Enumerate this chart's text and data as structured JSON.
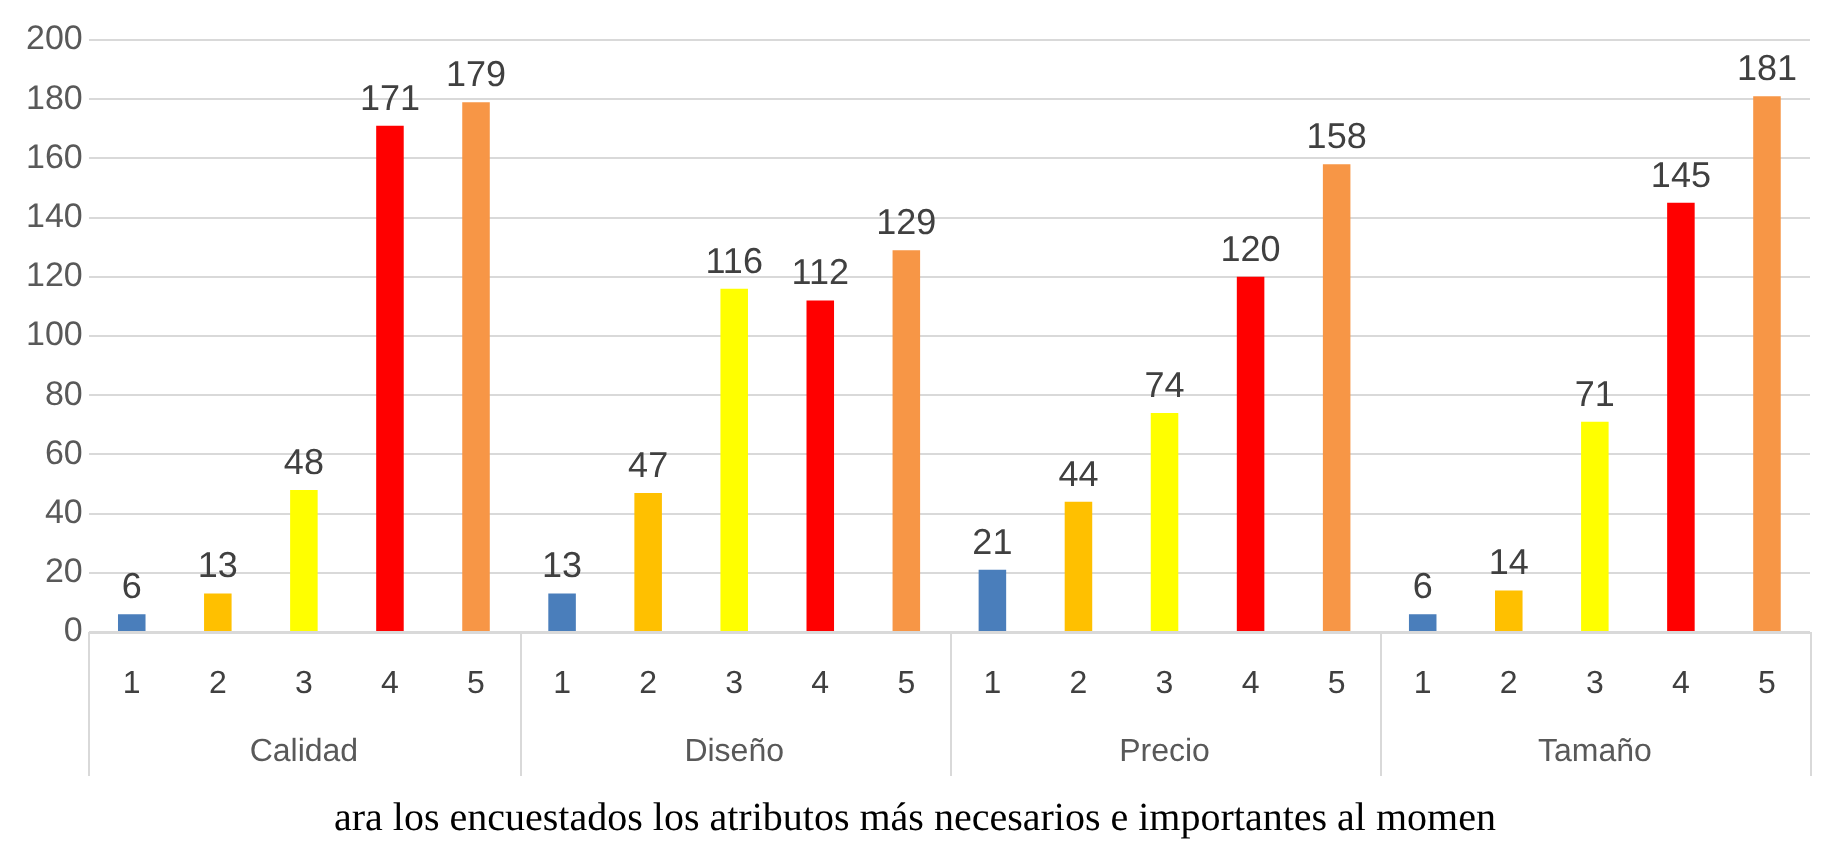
{
  "chart_data": {
    "type": "bar",
    "categories": [
      "Calidad",
      "Diseño",
      "Precio",
      "Tamaño"
    ],
    "series": [
      {
        "name": "1",
        "color": "#4a7ebb",
        "values": [
          6,
          13,
          21,
          6
        ]
      },
      {
        "name": "2",
        "color": "#ffc000",
        "values": [
          13,
          47,
          44,
          14
        ]
      },
      {
        "name": "3",
        "color": "#ffff00",
        "values": [
          48,
          116,
          74,
          71
        ]
      },
      {
        "name": "4",
        "color": "#ff0000",
        "values": [
          171,
          112,
          120,
          145
        ]
      },
      {
        "name": "5",
        "color": "#f79646",
        "values": [
          179,
          129,
          158,
          181
        ]
      }
    ],
    "ylim": [
      0,
      200
    ],
    "yticks": [
      0,
      20,
      40,
      60,
      80,
      100,
      120,
      140,
      160,
      180,
      200
    ],
    "grid": "y",
    "legend": false,
    "data_labels": true,
    "annotations": [
      "ara los encuestados los atributos más necesarios e importantes al momen"
    ]
  }
}
